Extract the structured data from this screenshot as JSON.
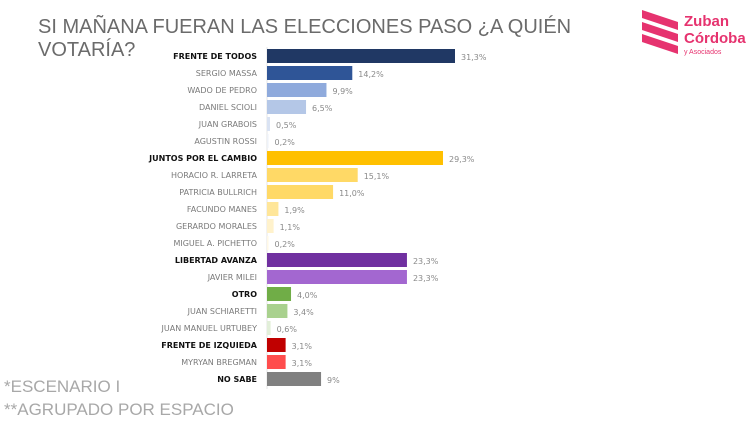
{
  "title": "SI MAÑANA FUERAN LAS ELECCIONES PASO ¿A QUIÉN VOTARÍA?",
  "notes": [
    "*ESCENARIO I",
    "**AGRUPADO POR ESPACIO"
  ],
  "logo": {
    "line1": "Zuban",
    "line2": "Córdoba",
    "line3": "y Asociados",
    "color": "#e6336f"
  },
  "chart_data": {
    "type": "bar",
    "orientation": "horizontal",
    "title": "SI MAÑANA FUERAN LAS ELECCIONES PASO ¿A QUIÉN VOTARÍA?",
    "categories": [
      "FRENTE DE TODOS",
      "SERGIO MASSA",
      "WADO DE PEDRO",
      "DANIEL SCIOLI",
      "JUAN GRABOIS",
      "AGUSTIN ROSSI",
      "JUNTOS POR EL CAMBIO",
      "HORACIO R. LARRETA",
      "PATRICIA BULLRICH",
      "FACUNDO MANES",
      "GERARDO MORALES",
      "MIGUEL A. PICHETTO",
      "LIBERTAD AVANZA",
      "JAVIER MILEI",
      "OTRO",
      "JUAN SCHIARETTI",
      "JUAN MANUEL URTUBEY",
      "FRENTE DE IZQUIEDA",
      "MYRYAN BREGMAN",
      "NO SABE"
    ],
    "values": [
      31.3,
      14.2,
      9.9,
      6.5,
      0.5,
      0.2,
      29.3,
      15.1,
      11.0,
      1.9,
      1.1,
      0.2,
      23.3,
      23.3,
      4.0,
      3.4,
      0.6,
      3.1,
      3.1,
      9
    ],
    "value_labels": [
      "31,3%",
      "14,2%",
      "9,9%",
      "6,5%",
      "0,5%",
      "0,2%",
      "29,3%",
      "15,1%",
      "11,0%",
      "1,9%",
      "1,1%",
      "0,2%",
      "23,3%",
      "23,3%",
      "4,0%",
      "3,4%",
      "0,6%",
      "3,1%",
      "3,1%",
      "9%"
    ],
    "bold": [
      true,
      false,
      false,
      false,
      false,
      false,
      true,
      false,
      false,
      false,
      false,
      false,
      true,
      false,
      true,
      false,
      false,
      true,
      false,
      true
    ],
    "colors": [
      "#203864",
      "#2f5597",
      "#8faadc",
      "#b4c7e7",
      "#dae3f3",
      "#eef2f8",
      "#ffc000",
      "#ffd966",
      "#ffd966",
      "#ffe699",
      "#fff2cc",
      "#fff8e6",
      "#7030a0",
      "#a367d0",
      "#70ad47",
      "#a9d18e",
      "#e2efd9",
      "#c00000",
      "#ff4d4d",
      "#808080"
    ],
    "xlim": [
      0,
      32
    ]
  }
}
